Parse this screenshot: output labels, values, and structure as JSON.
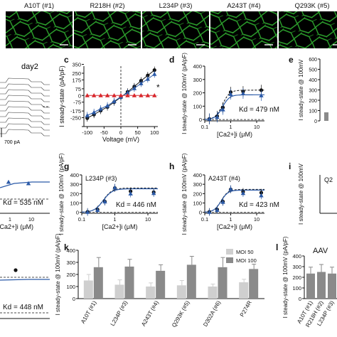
{
  "micrographs": {
    "labels": [
      "A10T (#1)",
      "R218H (#2)",
      "L234P (#3)",
      "A243T (#4)",
      "Q293K (#5)"
    ],
    "stain_color": "#3fd23f"
  },
  "panel_letters": [
    "c",
    "d",
    "e",
    "g",
    "h",
    "i",
    "k",
    "l"
  ],
  "trace_panel": {
    "title": "day2",
    "scale_text": "700 pA"
  },
  "colors": {
    "black": "#111111",
    "blue": "#2b5aa8",
    "red": "#d8262b",
    "gray_light": "#cfcfcf",
    "gray_dark": "#8a8a8a"
  },
  "chart_data": [
    {
      "id": "c",
      "type": "line",
      "xlabel": "Voltage (mV)",
      "ylabel": "I steady-state (pA/pF)",
      "xlim": [
        -110,
        110
      ],
      "ylim": [
        -350,
        330
      ],
      "xticks": [
        -100,
        -50,
        0,
        50,
        100
      ],
      "yticks": [
        -350,
        -250,
        -175,
        -75,
        0,
        75,
        175,
        250,
        350
      ],
      "ytick_labels": [
        "",
        "-250",
        "-175",
        "-75",
        "0",
        "75",
        "175",
        "250",
        "350"
      ],
      "annotation": "*",
      "series": [
        {
          "color": "#111111",
          "marker": "circle",
          "x": [
            -100,
            -80,
            -60,
            -40,
            -20,
            0,
            20,
            40,
            60,
            80,
            100
          ],
          "y": [
            -255,
            -215,
            -170,
            -130,
            -75,
            -20,
            40,
            100,
            165,
            225,
            285
          ]
        },
        {
          "color": "#2b5aa8",
          "marker": "triangle",
          "x": [
            -100,
            -80,
            -60,
            -40,
            -20,
            0,
            20,
            40,
            60,
            80,
            100
          ],
          "y": [
            -225,
            -190,
            -150,
            -115,
            -65,
            -15,
            30,
            80,
            135,
            185,
            240
          ]
        },
        {
          "color": "#d8262b",
          "marker": "triangle",
          "x": [
            -100,
            -80,
            -60,
            -40,
            -20,
            0,
            20,
            40,
            60,
            80,
            100
          ],
          "y": [
            0,
            0,
            0,
            0,
            0,
            0,
            0,
            0,
            0,
            0,
            0
          ]
        }
      ]
    },
    {
      "id": "d",
      "type": "scatter",
      "xlabel": "[Ca2+]i (μM)",
      "ylabel": "I steady-state @ 100mV (pA/pF)",
      "xlim": [
        0.1,
        20
      ],
      "ylim": [
        -10,
        400
      ],
      "yticks": [
        0,
        100,
        200,
        300,
        400
      ],
      "ytick_labels": [
        "0",
        "100",
        "200",
        "300",
        "400"
      ],
      "xticks": [
        0.1,
        1,
        10
      ],
      "xtick_labels": [
        "0.1",
        "1",
        "10"
      ],
      "annotation": "Kd = 479 nM",
      "series": [
        {
          "color": "#111111",
          "marker": "circle",
          "x": [
            0.15,
            0.3,
            0.5,
            1,
            3,
            15
          ],
          "y": [
            5,
            25,
            90,
            205,
            210,
            220
          ]
        },
        {
          "color": "#2b5aa8",
          "marker": "triangle",
          "x": [
            0.15,
            0.3,
            0.5,
            1,
            3,
            15
          ],
          "y": [
            5,
            18,
            75,
            190,
            195,
            180
          ]
        }
      ]
    },
    {
      "id": "g",
      "type": "scatter",
      "title": "L234P (#3)",
      "xlabel": "[Ca2+]i (μM)",
      "ylabel": "I steady-state @ 100mV (pA/pF)",
      "xlim": [
        0.1,
        20
      ],
      "ylim": [
        -10,
        400
      ],
      "yticks": [
        0,
        100,
        200,
        300,
        400
      ],
      "ytick_labels": [
        "0",
        "100",
        "200",
        "300",
        "400"
      ],
      "xticks": [
        0.1,
        1,
        10
      ],
      "xtick_labels": [
        "0.1",
        "1",
        "10"
      ],
      "annotation": "Kd = 446 nM",
      "series": [
        {
          "color": "#111111",
          "marker": "circle",
          "x": [
            0.15,
            0.3,
            0.5,
            1,
            3,
            15
          ],
          "y": [
            5,
            30,
            115,
            260,
            225,
            215
          ]
        },
        {
          "color": "#2b5aa8",
          "marker": "triangle",
          "x": [
            0.15,
            0.3,
            0.5,
            1,
            3,
            15
          ],
          "y": [
            4,
            25,
            115,
            265,
            200,
            205
          ]
        }
      ]
    },
    {
      "id": "h",
      "type": "scatter",
      "title": "A243T (#4)",
      "xlabel": "[Ca2+]i (μM)",
      "ylabel": "I steady-state @ 100mV (pA/pF)",
      "xlim": [
        0.1,
        20
      ],
      "ylim": [
        -10,
        400
      ],
      "yticks": [
        0,
        100,
        200,
        300,
        400
      ],
      "ytick_labels": [
        "0",
        "100",
        "200",
        "300",
        "400"
      ],
      "xticks": [
        0.1,
        1,
        10
      ],
      "xtick_labels": [
        "0.1",
        "1",
        "10"
      ],
      "annotation": "Kd = 423 nM",
      "series": [
        {
          "color": "#111111",
          "marker": "circle",
          "x": [
            0.15,
            0.3,
            0.5,
            1,
            3,
            15
          ],
          "y": [
            5,
            30,
            115,
            245,
            220,
            210
          ]
        },
        {
          "color": "#2b5aa8",
          "marker": "triangle",
          "x": [
            0.15,
            0.3,
            0.5,
            1,
            3,
            15
          ],
          "y": [
            4,
            25,
            110,
            250,
            205,
            180
          ]
        }
      ]
    },
    {
      "id": "k",
      "type": "bar",
      "ylabel": "I steady-state @ 100mV (pA/pF)",
      "categories": [
        "A10T (#1)",
        "L234P (#3)",
        "A243T (#4)",
        "Q293K (#5)",
        "D302A (#6)",
        "P274R"
      ],
      "ylim": [
        0,
        400
      ],
      "yticks": [
        0,
        100,
        200,
        300,
        400
      ],
      "ytick_labels": [
        "0",
        "100",
        "200",
        "300",
        "400"
      ],
      "legend": "top-right",
      "series": [
        {
          "name": "MOI 50",
          "color": "#cfcfcf",
          "values": [
            150,
            115,
            100,
            110,
            100,
            135
          ],
          "errors": [
            50,
            40,
            30,
            40,
            20,
            25
          ]
        },
        {
          "name": "MOI 100",
          "color": "#8a8a8a",
          "values": [
            260,
            265,
            230,
            280,
            260,
            245
          ],
          "errors": [
            80,
            60,
            50,
            70,
            80,
            40
          ]
        }
      ]
    },
    {
      "id": "l",
      "type": "bar",
      "title": "AAV",
      "ylabel": "I steady-state @ 100mV (pA/pF)",
      "categories": [
        "A10T (#1)",
        "R218H (#2)",
        "L234P (#3)"
      ],
      "ylim": [
        0,
        400
      ],
      "yticks": [
        0,
        100,
        200,
        300,
        400
      ],
      "ytick_labels": [
        "0",
        "100",
        "200",
        "300",
        "400"
      ],
      "series": [
        {
          "color": "#8a8a8a",
          "values": [
            235,
            250,
            235
          ],
          "errors": [
            60,
            70,
            60
          ]
        }
      ]
    },
    {
      "id": "e-partial",
      "type": "bar",
      "ylabel": "I steady-state @ 100mV",
      "yticks": [
        0,
        100,
        200,
        300,
        400,
        500,
        600
      ],
      "ytick_labels": [
        "0",
        "100",
        "200",
        "300",
        "400",
        "500",
        "600"
      ]
    },
    {
      "id": "f-partial",
      "type": "scatter",
      "annotation": "Kd = 535 nM",
      "xtick_labels": [
        "1",
        "10"
      ],
      "xlabel": "[Ca2+]i (μM)"
    },
    {
      "id": "j-partial",
      "type": "scatter",
      "annotation": "Kd = 448 nM"
    },
    {
      "id": "i-partial",
      "type": "scatter",
      "title": "Q2"
    }
  ]
}
